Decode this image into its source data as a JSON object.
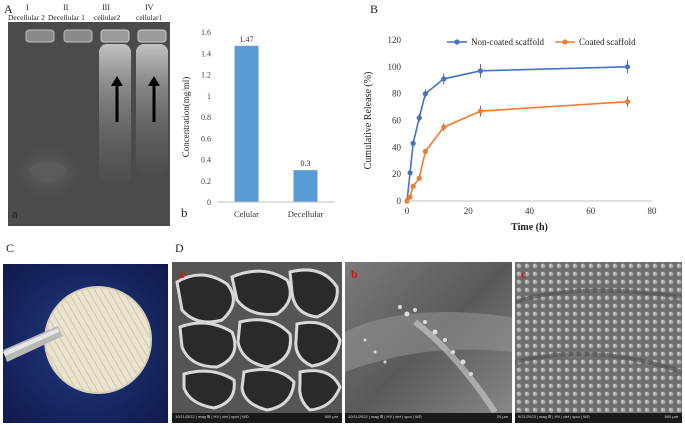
{
  "figure": {
    "panel_A_label": "A",
    "panel_B_label": "B",
    "panel_C_label": "C",
    "panel_D_label": "D",
    "sub_a": "a",
    "sub_b": "b"
  },
  "gel": {
    "numerals": [
      "I",
      "II",
      "III",
      "IV"
    ],
    "lanes": [
      "Decellular 2",
      "Decellular 1",
      "cellular2",
      "cellular1"
    ]
  },
  "chart_data": [
    {
      "type": "bar",
      "categories": [
        "Celular",
        "Decellular"
      ],
      "values": [
        1.47,
        0.3
      ],
      "data_labels": [
        "1.47",
        "0.3"
      ],
      "xlabel": "",
      "ylabel": "Concentration(mg/ml)",
      "ylim": [
        0,
        1.6
      ],
      "yticks": [
        "0",
        "0.2",
        "0.4",
        "0.6",
        "0.8",
        "1",
        "1.2",
        "1.4",
        "1.6"
      ],
      "grid": false,
      "color": "#5b9bd5"
    },
    {
      "type": "line",
      "xlabel": "Time (h)",
      "ylabel": "Cumulative Release (%)",
      "xlim": [
        0,
        80
      ],
      "ylim": [
        0,
        120
      ],
      "xticks": [
        "0",
        "20",
        "40",
        "60",
        "80"
      ],
      "yticks": [
        "0",
        "20",
        "40",
        "60",
        "80",
        "100",
        "120"
      ],
      "legend": "top",
      "series": [
        {
          "name": "Non-coated scaffold",
          "color": "#4472c4",
          "x": [
            0,
            1,
            2,
            4,
            6,
            12,
            24,
            72
          ],
          "y": [
            0,
            21,
            43,
            62,
            80,
            91,
            97,
            100
          ],
          "err": [
            1,
            2,
            2,
            3,
            3,
            4,
            5,
            5
          ]
        },
        {
          "name": "Coated scaffold",
          "color": "#ed7d31",
          "x": [
            0,
            1,
            2,
            4,
            6,
            12,
            24,
            72
          ],
          "y": [
            0,
            3,
            11,
            17,
            37,
            55,
            67,
            74
          ],
          "err": [
            1,
            1,
            1,
            2,
            2,
            3,
            4,
            4
          ]
        }
      ]
    }
  ],
  "sem": {
    "letters": [
      "a",
      "b",
      "c"
    ],
    "captions": [
      "10/11/2022 | mag ⊞ | HV | det | spot | WD",
      "10/11/2022 | mag ⊞ | HV | det | spot | WD",
      "9/21/2023 | mag ⊞ | HV | det | spot | WD"
    ],
    "scales": [
      "500 µm",
      "20 µm",
      "500 µm"
    ]
  }
}
